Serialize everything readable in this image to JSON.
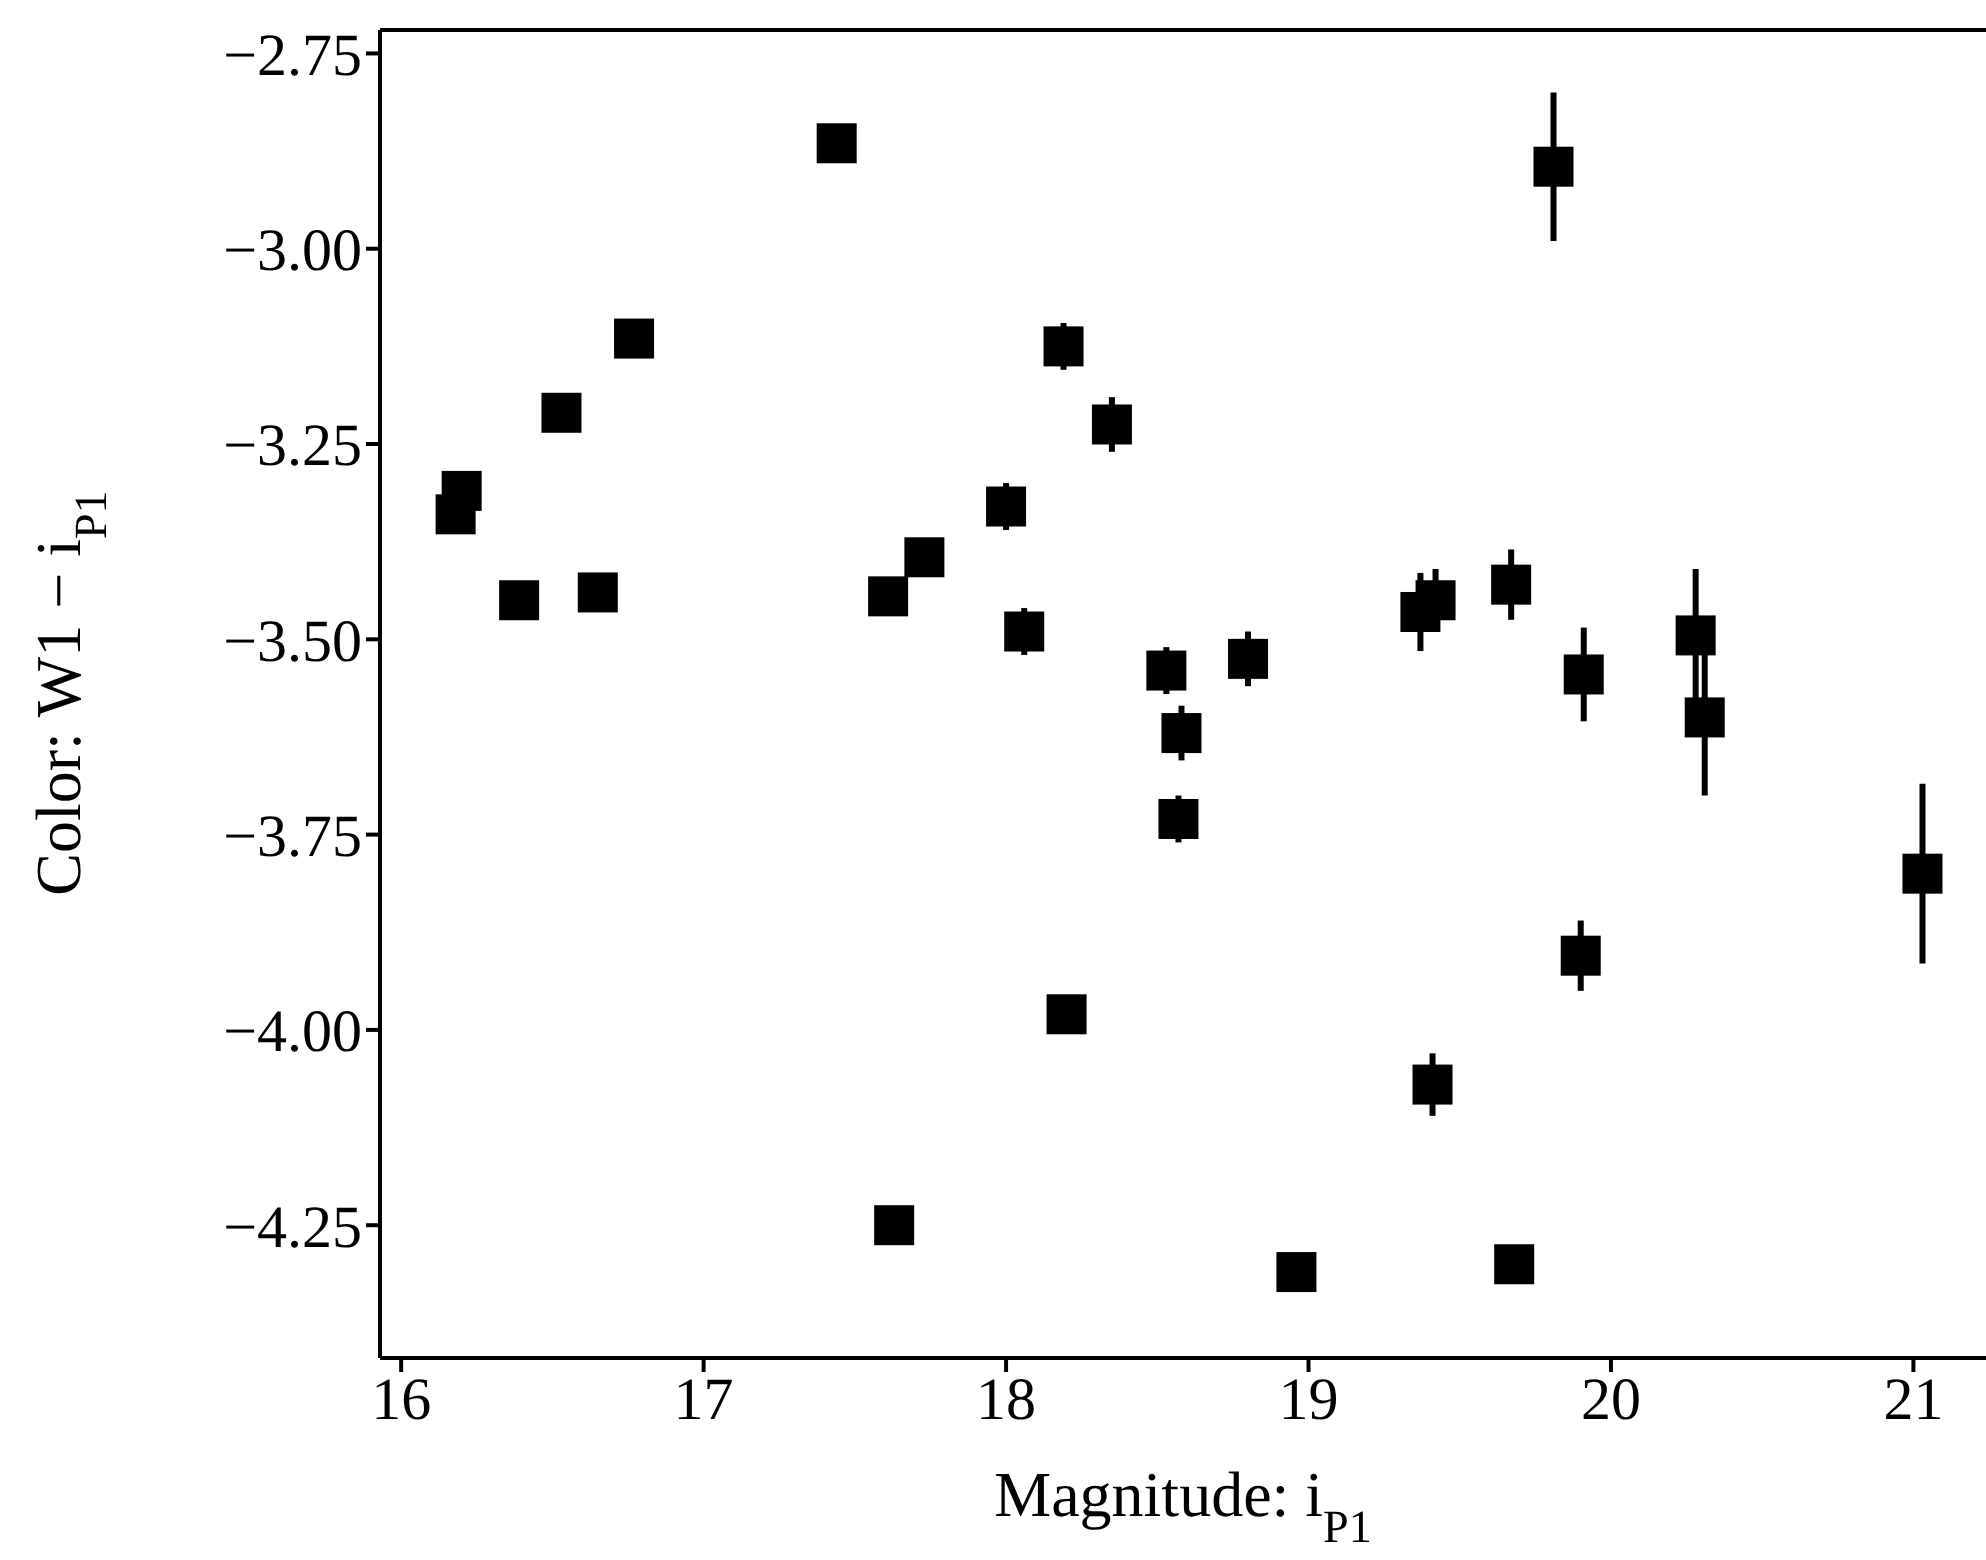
{
  "chart_data": {
    "type": "scatter",
    "xlabel": "Magnitude: i$_{P1}$",
    "ylabel": "Color: W1 − i$_{P1}$",
    "x": [
      16.18,
      16.2,
      16.39,
      16.53,
      16.65,
      16.77,
      17.44,
      17.61,
      17.73,
      18.0,
      18.06,
      18.19,
      18.2,
      17.63,
      18.35,
      18.53,
      18.58,
      18.57,
      18.8,
      18.96,
      19.37,
      19.42,
      19.41,
      19.67,
      19.68,
      19.81,
      19.91,
      19.9,
      20.28,
      20.31,
      21.03
    ],
    "series": [
      {
        "color": "#000000",
        "values": [
          -3.34,
          -3.31,
          -3.45,
          -3.21,
          -3.44,
          -3.115,
          -2.865,
          -3.445,
          -3.395,
          -3.33,
          -3.49,
          -3.125,
          -3.98,
          -4.25,
          -3.225,
          -3.54,
          -3.62,
          -3.73,
          -3.525,
          -4.31,
          -3.465,
          -3.45,
          -4.07,
          -3.43,
          -4.3,
          -2.895,
          -3.545,
          -3.905,
          -3.495,
          -3.6,
          -3.8
        ],
        "errors": [
          0.01,
          0.01,
          0.01,
          0.01,
          0.01,
          0.01,
          0.02,
          0.01,
          0.01,
          0.03,
          0.03,
          0.03,
          0.02,
          0.01,
          0.035,
          0.03,
          0.035,
          0.03,
          0.035,
          0.02,
          0.05,
          0.04,
          0.04,
          0.045,
          0.02,
          0.095,
          0.06,
          0.045,
          0.085,
          0.1,
          0.115
        ]
      }
    ],
    "xlim": [
      15.93,
      21.24
    ],
    "ylim": [
      -4.42,
      -2.72
    ],
    "xticks": [
      16,
      17,
      18,
      19,
      20,
      21
    ],
    "yticks": [
      {
        "value": -2.75,
        "label": "−2.75"
      },
      {
        "value": -3.0,
        "label": "−3.00"
      },
      {
        "value": -3.25,
        "label": "−3.25"
      },
      {
        "value": -3.5,
        "label": "−3.50"
      },
      {
        "value": -3.75,
        "label": "−3.75"
      },
      {
        "value": -4.0,
        "label": "−4.00"
      },
      {
        "value": -4.25,
        "label": "−4.25"
      }
    ],
    "marker": "square",
    "grid": false,
    "legend": false
  }
}
